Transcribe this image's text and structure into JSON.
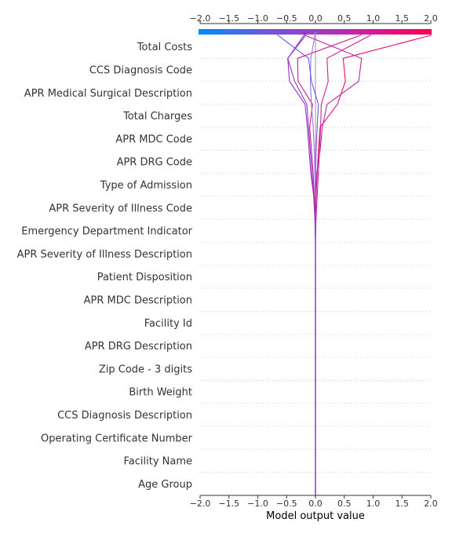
{
  "chart_data": {
    "type": "line",
    "subtype": "shap-decision-plot",
    "xlabel": "Model output value",
    "xlim": [
      -2.0,
      2.0
    ],
    "xticks": [
      "−2.0",
      "−1.5",
      "−1.0",
      "−0.5",
      "0.0",
      "0.5",
      "1.0",
      "1.5",
      "2.0"
    ],
    "xtick_values": [
      -2.0,
      -1.5,
      -1.0,
      -0.5,
      0.0,
      0.5,
      1.0,
      1.5,
      2.0
    ],
    "base_value": 0.0,
    "grid": "dotted horizontal lines between features",
    "colorbar": {
      "position": "top",
      "min": -2.0,
      "max": 2.0,
      "colors": [
        "#008bfb",
        "#7a52d8",
        "#c026b0",
        "#ff0052"
      ]
    },
    "features": [
      "Total Costs",
      "CCS Diagnosis Code",
      "APR Medical Surgical Description",
      "Total Charges",
      "APR MDC Code",
      "APR DRG Code",
      "Type of Admission",
      "APR Severity of Illness Code",
      "Emergency Department Indicator",
      "APR Severity of Illness Description",
      "Patient Disposition",
      "APR MDC Description",
      "Facility Id",
      "APR DRG Description",
      "Zip Code - 3 digits",
      "Birth Weight",
      "CCS Diagnosis Description",
      "Operating Certificate Number",
      "Facility Name",
      "Age Group"
    ],
    "series_note": "each path lists cumulative output from bottom (Age Group, base) to top (final prediction)",
    "series": [
      {
        "values": [
          0.0,
          0.0,
          0.0,
          0.0,
          0.0,
          0.0,
          0.0,
          0.0,
          0.0,
          0.0,
          0.0,
          0.0,
          -0.01,
          -0.03,
          -0.06,
          -0.09,
          -0.12,
          -0.15,
          -0.36,
          -0.48,
          -0.2
        ],
        "color": "#8a36c8"
      },
      {
        "values": [
          0.0,
          0.0,
          0.0,
          0.0,
          0.0,
          0.0,
          0.0,
          0.0,
          0.0,
          0.0,
          0.0,
          0.0,
          -0.01,
          -0.03,
          -0.08,
          -0.11,
          -0.14,
          -0.18,
          -0.45,
          -0.48,
          -0.17
        ],
        "color": "#9530c0"
      },
      {
        "values": [
          0.0,
          0.0,
          0.0,
          0.0,
          0.0,
          0.0,
          0.0,
          0.0,
          0.0,
          0.0,
          0.0,
          0.0,
          0.0,
          -0.02,
          -0.04,
          -0.07,
          -0.1,
          -0.05,
          -0.3,
          -0.31,
          0.78
        ],
        "color": "#d31a80"
      },
      {
        "values": [
          0.0,
          0.0,
          0.0,
          0.0,
          0.0,
          0.0,
          0.0,
          0.0,
          0.0,
          0.0,
          0.0,
          0.0,
          0.01,
          0.03,
          0.05,
          0.07,
          0.09,
          0.1,
          0.22,
          0.2,
          0.95
        ],
        "color": "#c22396"
      },
      {
        "values": [
          0.0,
          0.0,
          0.0,
          0.0,
          0.0,
          0.0,
          0.0,
          0.0,
          0.0,
          0.0,
          0.0,
          0.0,
          0.0,
          0.01,
          0.03,
          0.05,
          0.08,
          0.38,
          0.52,
          0.48,
          2.0
        ],
        "color": "#ef0c68"
      },
      {
        "values": [
          0.0,
          0.0,
          0.0,
          0.0,
          0.0,
          0.0,
          0.0,
          0.0,
          0.0,
          0.0,
          0.0,
          0.0,
          0.0,
          0.01,
          0.02,
          0.08,
          0.12,
          0.2,
          0.75,
          0.8,
          -0.18
        ],
        "color": "#bc24a3"
      },
      {
        "values": [
          0.0,
          0.0,
          0.0,
          0.0,
          0.0,
          0.0,
          0.0,
          0.0,
          0.0,
          0.0,
          0.0,
          0.0,
          0.0,
          0.0,
          -0.01,
          -0.02,
          -0.04,
          -0.07,
          -0.09,
          -0.08,
          -0.01
        ],
        "color": "#9a76e8"
      },
      {
        "values": [
          0.0,
          0.0,
          0.0,
          0.0,
          0.0,
          0.0,
          0.0,
          0.0,
          0.0,
          0.0,
          0.0,
          0.0,
          0.0,
          0.0,
          0.0,
          0.01,
          0.03,
          0.05,
          -0.07,
          -0.12,
          -0.65
        ],
        "color": "#6e58dc"
      }
    ]
  }
}
